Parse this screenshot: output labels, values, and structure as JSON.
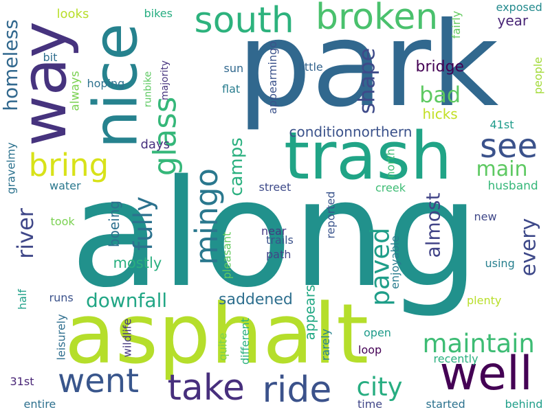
{
  "words": [
    {
      "text": "along",
      "color": "#21918c"
    },
    {
      "text": "park",
      "color": "#31688e"
    },
    {
      "text": "asphalt",
      "color": "#b5de2b"
    },
    {
      "text": "trash",
      "color": "#20a486"
    },
    {
      "text": "nice",
      "color": "#26828e"
    },
    {
      "text": "way",
      "color": "#46337e"
    },
    {
      "text": "well",
      "color": "#440154"
    },
    {
      "text": "south",
      "color": "#2db27d"
    },
    {
      "text": "broken",
      "color": "#4ac16d"
    },
    {
      "text": "take",
      "color": "#472f7d"
    },
    {
      "text": "ride",
      "color": "#3b528b"
    },
    {
      "text": "went",
      "color": "#39568c"
    },
    {
      "text": "bring",
      "color": "#d8e219"
    },
    {
      "text": "glass",
      "color": "#35b779"
    },
    {
      "text": "see",
      "color": "#3b528b"
    },
    {
      "text": "mingo",
      "color": "#2a788e"
    },
    {
      "text": "maintain",
      "color": "#3dbc74"
    },
    {
      "text": "downfall",
      "color": "#21a685"
    },
    {
      "text": "fully",
      "color": "#2c728e"
    },
    {
      "text": "city",
      "color": "#27ad81"
    },
    {
      "text": "paved",
      "color": "#1f9e89"
    },
    {
      "text": "homeless",
      "color": "#31688e"
    },
    {
      "text": "river",
      "color": "#3f4788"
    },
    {
      "text": "shape",
      "color": "#3e4a89"
    },
    {
      "text": "bad",
      "color": "#5ec962"
    },
    {
      "text": "main",
      "color": "#5ec962"
    },
    {
      "text": "every",
      "color": "#3e4989"
    },
    {
      "text": "almost",
      "color": "#414487"
    },
    {
      "text": "camps",
      "color": "#2ab07f"
    },
    {
      "text": "saddened",
      "color": "#2e6f8e"
    },
    {
      "text": "mostly",
      "color": "#29af7f"
    },
    {
      "text": "boeing",
      "color": "#2d708e"
    },
    {
      "text": "appears",
      "color": "#22a884"
    },
    {
      "text": "days",
      "color": "#46307e"
    },
    {
      "text": "bridge",
      "color": "#440154"
    },
    {
      "text": "conditionnorthern",
      "color": "#3b528b"
    },
    {
      "text": "hicks",
      "color": "#c2df23"
    },
    {
      "text": "year",
      "color": "#482576"
    },
    {
      "text": "husband",
      "color": "#35b779"
    },
    {
      "text": "looks",
      "color": "#b8de29"
    },
    {
      "text": "always",
      "color": "#7ad151"
    },
    {
      "text": "reported",
      "color": "#3a548c"
    },
    {
      "text": "almost",
      "color": "#414487"
    },
    {
      "text": "gravelmy",
      "color": "#2c728e"
    },
    {
      "text": "hoping",
      "color": "#2d718e"
    },
    {
      "text": "exposed",
      "color": "#238a8d"
    },
    {
      "text": "fairly",
      "color": "#63cb5f"
    },
    {
      "text": "appearmingo",
      "color": "#3b528b"
    },
    {
      "text": "runbike",
      "color": "#5ec962"
    },
    {
      "text": "majority",
      "color": "#46337e"
    },
    {
      "text": "bikes",
      "color": "#27ad81"
    },
    {
      "text": "little",
      "color": "#33638d"
    },
    {
      "text": "sun",
      "color": "#31688e"
    },
    {
      "text": "flat",
      "color": "#287d8e"
    },
    {
      "text": "bit",
      "color": "#2e6e8e"
    },
    {
      "text": "people",
      "color": "#a2da37"
    },
    {
      "text": "41st",
      "color": "#1e9b8a"
    },
    {
      "text": "water",
      "color": "#2a788e"
    },
    {
      "text": "street",
      "color": "#3e4a89"
    },
    {
      "text": "creek",
      "color": "#3dbc74"
    },
    {
      "text": "took",
      "color": "#7ad151"
    },
    {
      "text": "north",
      "color": "#3dbc74"
    },
    {
      "text": "near",
      "color": "#453781"
    },
    {
      "text": "trails",
      "color": "#3b528b"
    },
    {
      "text": "path",
      "color": "#414487"
    },
    {
      "text": "pleasant",
      "color": "#63cb5f"
    },
    {
      "text": "enjoyable",
      "color": "#287c8e"
    },
    {
      "text": "new",
      "color": "#3f4788"
    },
    {
      "text": "using",
      "color": "#277f8e"
    },
    {
      "text": "plenty",
      "color": "#b8de29"
    },
    {
      "text": "half",
      "color": "#1fa088"
    },
    {
      "text": "runs",
      "color": "#3b528b"
    },
    {
      "text": "leisurely",
      "color": "#2e6e8e"
    },
    {
      "text": "wildlife",
      "color": "#453781"
    },
    {
      "text": "quite",
      "color": "#7ad151"
    },
    {
      "text": "different",
      "color": "#2ab07f"
    },
    {
      "text": "rarely",
      "color": "#26828e"
    },
    {
      "text": "open",
      "color": "#1e9b8a"
    },
    {
      "text": "loop",
      "color": "#440154"
    },
    {
      "text": "recently",
      "color": "#2ab07f"
    },
    {
      "text": "31st",
      "color": "#482576"
    },
    {
      "text": "entire",
      "color": "#2d708e"
    },
    {
      "text": "time",
      "color": "#404688"
    },
    {
      "text": "started",
      "color": "#2c728e"
    },
    {
      "text": "behind",
      "color": "#1f9e89"
    }
  ]
}
